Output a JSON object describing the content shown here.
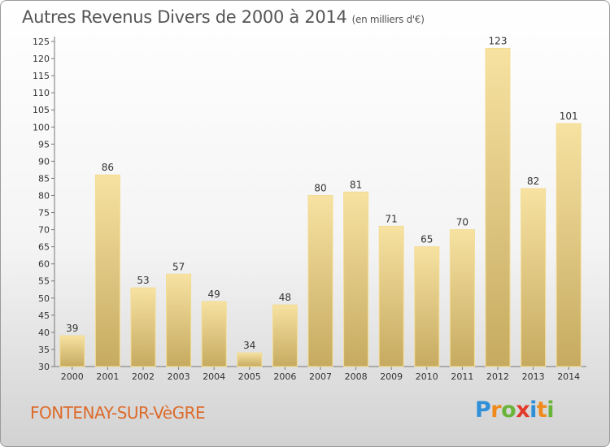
{
  "title": "Autres Revenus Divers de 2000 à 2014",
  "subtitle": "(en milliers d'€)",
  "commune": "FONTENAY-SUR-VèGRE",
  "logo": {
    "letters": [
      "P",
      "r",
      "o",
      "x",
      "i",
      "t",
      "i"
    ],
    "colors": [
      "#2f8fd8",
      "#f08a1c",
      "#6ab43a",
      "#e23a2a",
      "#2f8fd8",
      "#f08a1c",
      "#6ab43a"
    ]
  },
  "colors": {
    "bar_light": "#f7e2a2",
    "bar_dark": "#c6aa60",
    "accent": "#dd6a2a"
  },
  "chart_data": {
    "type": "bar",
    "title": "Autres Revenus Divers de 2000 à 2014",
    "subtitle": "(en milliers d'€)",
    "categories": [
      "2000",
      "2001",
      "2002",
      "2003",
      "2004",
      "2005",
      "2006",
      "2007",
      "2008",
      "2009",
      "2010",
      "2011",
      "2012",
      "2013",
      "2014"
    ],
    "values": [
      39,
      86,
      53,
      57,
      49,
      34,
      48,
      80,
      81,
      71,
      65,
      70,
      123,
      82,
      101
    ],
    "ylim": [
      30,
      125
    ],
    "yticks": [
      30,
      35,
      40,
      45,
      50,
      55,
      60,
      65,
      70,
      75,
      80,
      85,
      90,
      95,
      100,
      105,
      110,
      115,
      120,
      125
    ],
    "grid": false,
    "data_labels": true
  }
}
